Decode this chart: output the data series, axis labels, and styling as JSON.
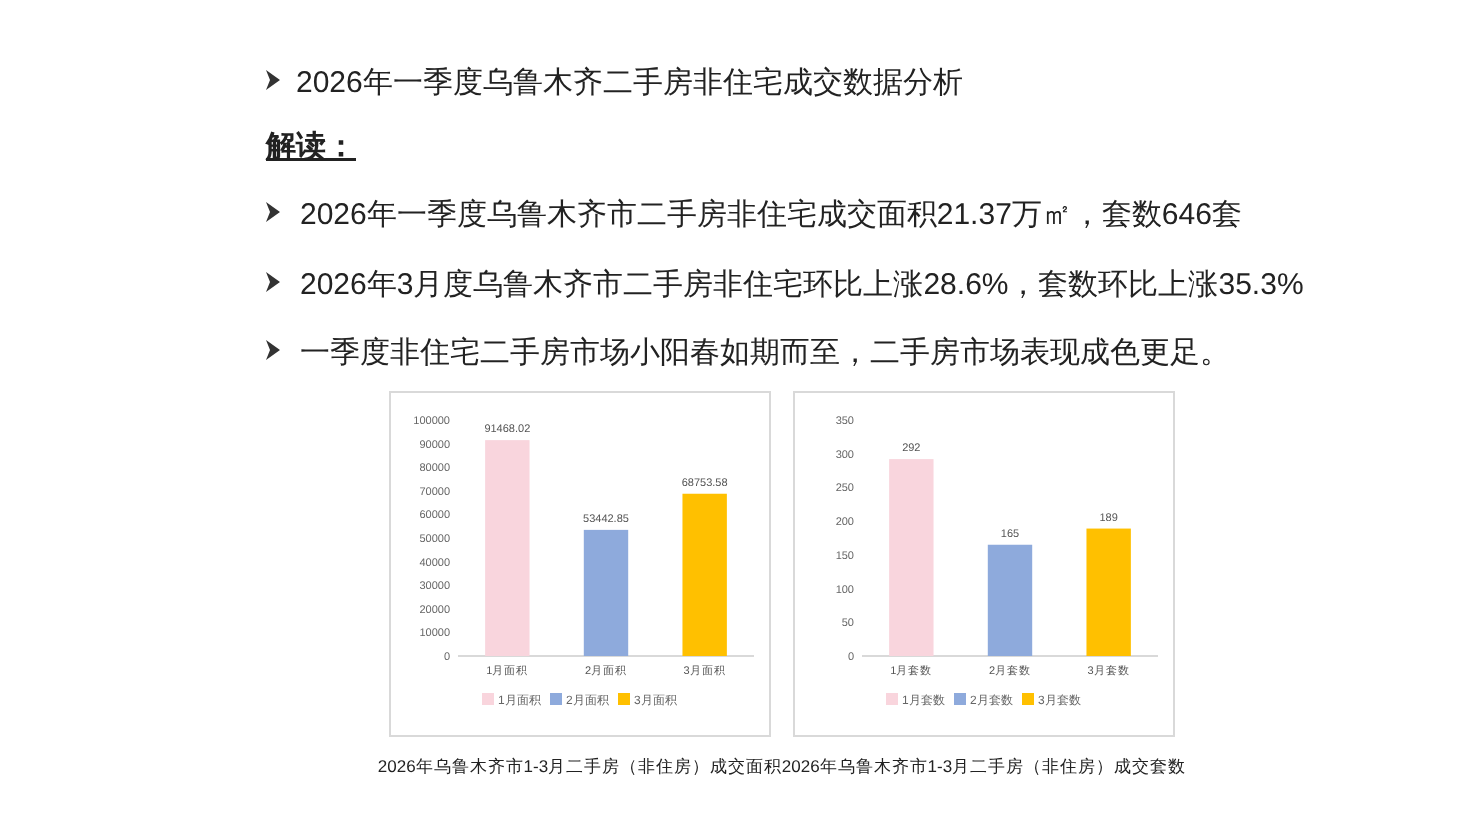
{
  "chart_data": [
    {
      "type": "other",
      "title": "2026年一季度乌鲁木齐二手房非住宅成交数据分析",
      "annotations": [
        "解读：",
        "2026年一季度乌鲁木齐市二手房非住宅成交面积21.37万㎡，套数646套",
        "2026年3月度乌鲁木齐市二手房非住宅环比上涨28.6%，套数环比上涨35.3%",
        "一季度非住宅二手房市场小阳春如期而至，二手房市场表现成色更足。"
      ]
    },
    {
      "type": "bar",
      "title": "2026年乌鲁木齐市1-3月二手房（非住房）成交面积",
      "categories": [
        "1月面积",
        "2月面积",
        "3月面积"
      ],
      "stacked": true,
      "series": [
        {
          "name": "1月面积",
          "color": "#f9d5dd",
          "values": [
            91468.02,
            null,
            null
          ]
        },
        {
          "name": "2月面积",
          "color": "#8eaadc",
          "values": [
            null,
            53442.85,
            null
          ]
        },
        {
          "name": "3月面积",
          "color": "#ffc000",
          "values": [
            null,
            null,
            68753.58
          ]
        }
      ],
      "ylim": [
        0,
        100000
      ],
      "yticks": [
        0,
        10000,
        20000,
        30000,
        40000,
        50000,
        60000,
        70000,
        80000,
        90000,
        100000
      ],
      "data_labels": true,
      "legend": "bottom"
    },
    {
      "type": "bar",
      "title": "2026年乌鲁木齐市1-3月二手房（非住房）成交套数",
      "categories": [
        "1月套数",
        "2月套数",
        "3月套数"
      ],
      "stacked": true,
      "series": [
        {
          "name": "1月套数",
          "color": "#f9d5dd",
          "values": [
            292,
            null,
            null
          ]
        },
        {
          "name": "2月套数",
          "color": "#8eaadc",
          "values": [
            null,
            165,
            null
          ]
        },
        {
          "name": "3月套数",
          "color": "#ffc000",
          "values": [
            null,
            null,
            189
          ]
        }
      ],
      "ylim": [
        0,
        350
      ],
      "yticks": [
        0,
        50,
        100,
        150,
        200,
        250,
        300,
        350
      ],
      "data_labels": true,
      "legend": "bottom"
    }
  ]
}
